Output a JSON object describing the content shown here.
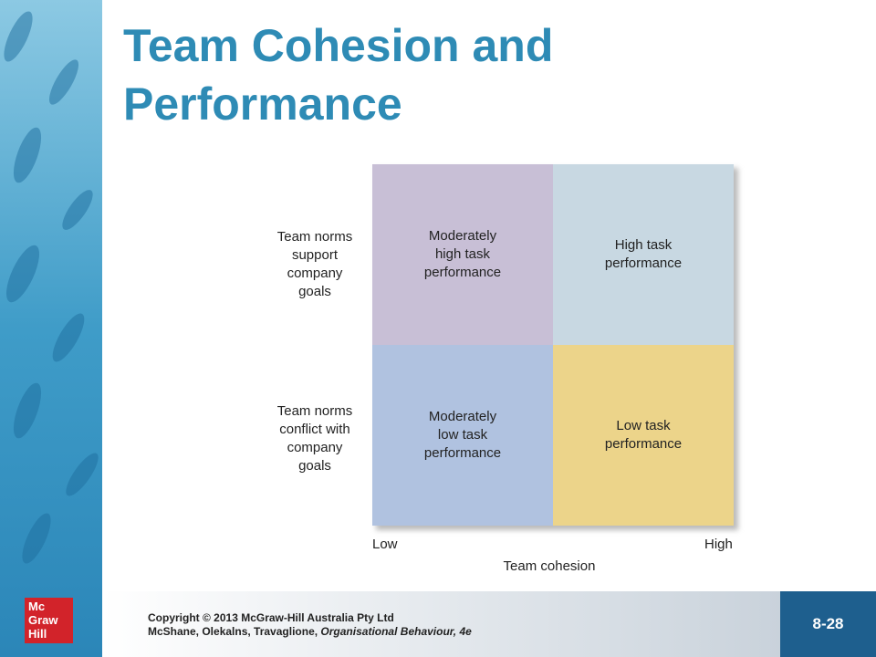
{
  "header": {
    "title": [
      "Team Cohesion and",
      "Performance"
    ]
  },
  "matrix": {
    "rows": [
      {
        "label": [
          "Team norms",
          "support",
          "company",
          "goals"
        ],
        "cells": [
          [
            "Moderately",
            "high task",
            "performance"
          ],
          [
            "High task",
            "performance"
          ]
        ]
      },
      {
        "label": [
          "Team norms",
          "conflict with",
          "company",
          "goals"
        ],
        "cells": [
          [
            "Moderately",
            "low task",
            "performance"
          ],
          [
            "Low task",
            "performance"
          ]
        ]
      }
    ],
    "x_axis": {
      "low": "Low",
      "high": "High",
      "title": "Team cohesion"
    }
  },
  "footer": {
    "copyright": "Copyright © 2013 McGraw-Hill Australia Pty Ltd",
    "authors": "McShane, Olekalns, Travaglione,",
    "book": "Organisational Behaviour, 4e",
    "logo": [
      "Mc",
      "Graw",
      "Hill"
    ],
    "slide_number": "8-28"
  }
}
